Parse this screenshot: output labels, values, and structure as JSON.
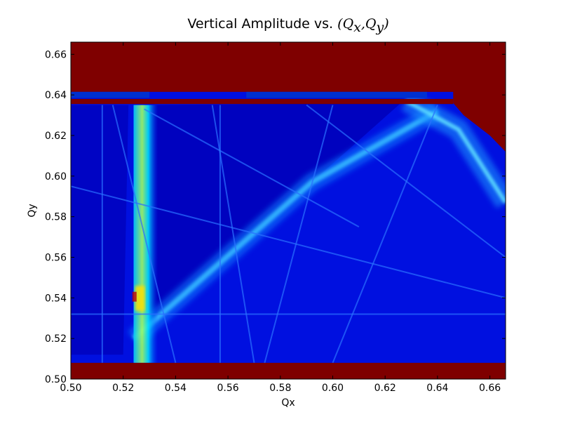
{
  "chart_data": {
    "type": "heatmap",
    "title": {
      "text": "Vertical Amplitude vs. (Q_x,Q_y)",
      "plain": "Vertical Amplitude vs. ",
      "open_paren": "(",
      "qx": "Q",
      "qx_sub": "x",
      "comma": ",",
      "qy": "Q",
      "qy_sub": "y",
      "close_paren": ")"
    },
    "xlabel": "Qx",
    "ylabel": "Qy",
    "xlim": [
      0.5,
      0.666
    ],
    "ylim": [
      0.5,
      0.666
    ],
    "x_ticks": [
      0.5,
      0.52,
      0.54,
      0.56,
      0.58,
      0.6,
      0.62,
      0.64,
      0.66
    ],
    "y_ticks": [
      0.5,
      0.52,
      0.54,
      0.56,
      0.58,
      0.6,
      0.62,
      0.64,
      0.66
    ],
    "x_tick_labels": [
      "0.50",
      "0.52",
      "0.54",
      "0.56",
      "0.58",
      "0.60",
      "0.62",
      "0.64",
      "0.66"
    ],
    "y_tick_labels": [
      "0.50",
      "0.52",
      "0.54",
      "0.56",
      "0.58",
      "0.60",
      "0.62",
      "0.64",
      "0.66"
    ],
    "grid": false,
    "colormap": "jet",
    "colors": {
      "saturated": "#7f0000",
      "background": "#0000b8",
      "base": "#0010e0"
    },
    "regions": {
      "saturated_top_qy_above": 0.6415,
      "saturated_band_qy": [
        0.6355,
        0.638
      ],
      "saturated_bottom_qy_below": 0.508,
      "bright_vertical_band_qx": [
        0.5245,
        0.5285
      ],
      "diagonal_ridge": [
        [
          0.524,
          0.52
        ],
        [
          0.592,
          0.597
        ],
        [
          0.64,
          0.632
        ]
      ],
      "right_ridge": [
        [
          0.628,
          0.637
        ],
        [
          0.648,
          0.623
        ],
        [
          0.666,
          0.587
        ]
      ]
    }
  }
}
